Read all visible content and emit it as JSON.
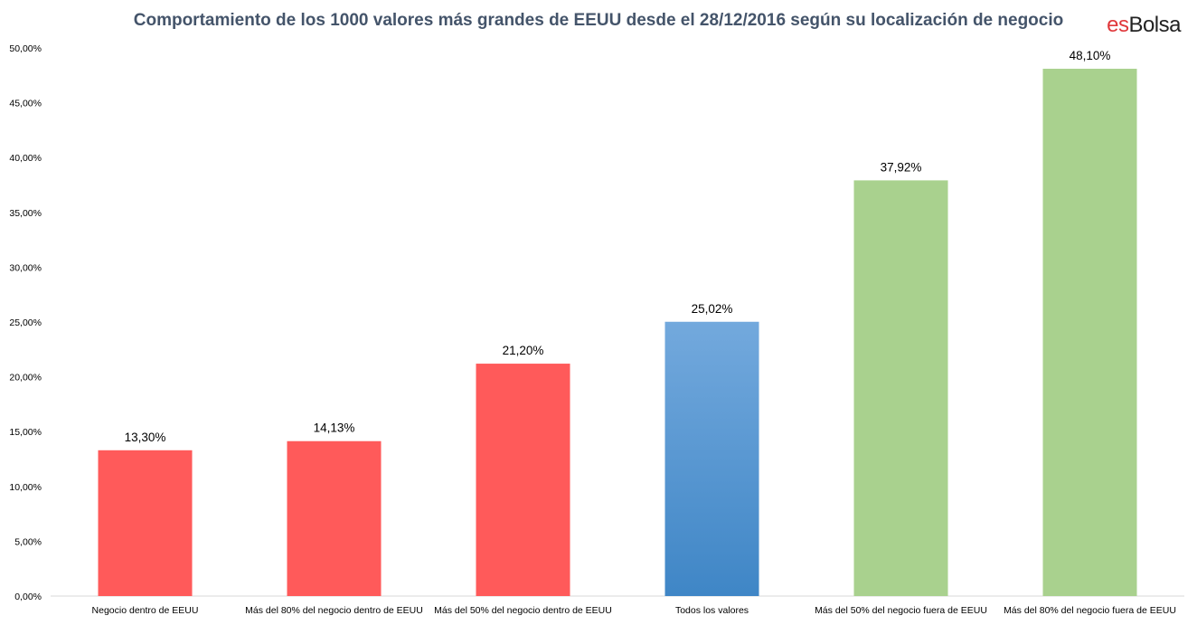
{
  "brand": {
    "part1": "es",
    "part2": "Bolsa"
  },
  "colors": {
    "red": "#ff5a5a",
    "blue_top": "#73a9dd",
    "blue_bottom": "#3f86c6",
    "green": "#a9d18e",
    "axis": "#d9d9d9",
    "text": "#000000",
    "title": "#44546a"
  },
  "chart_data": {
    "type": "bar",
    "title": "Comportamiento  de los 1000 valores más grandes de EEUU desde el 28/12/2016 según su localización  de negocio",
    "xlabel": "",
    "ylabel": "",
    "ylim": [
      0,
      50
    ],
    "yticks": [
      "0,00%",
      "5,00%",
      "10,00%",
      "15,00%",
      "20,00%",
      "25,00%",
      "30,00%",
      "35,00%",
      "40,00%",
      "45,00%",
      "50,00%"
    ],
    "grid": false,
    "categories": [
      "Negocio dentro de EEUU",
      "Más del 80% del negocio dentro de EEUU",
      "Más del 50% del negocio dentro de EEUU",
      "Todos los valores",
      "Más del 50% del negocio fuera de EEUU",
      "Más del 80% del negocio fuera de EEUU"
    ],
    "values": [
      13.3,
      14.13,
      21.2,
      25.02,
      37.92,
      48.1
    ],
    "labels": [
      "13,30%",
      "14,13%",
      "21,20%",
      "25,02%",
      "37,92%",
      "48,10%"
    ],
    "bar_colors": [
      "red",
      "red",
      "red",
      "blue",
      "green",
      "green"
    ]
  }
}
